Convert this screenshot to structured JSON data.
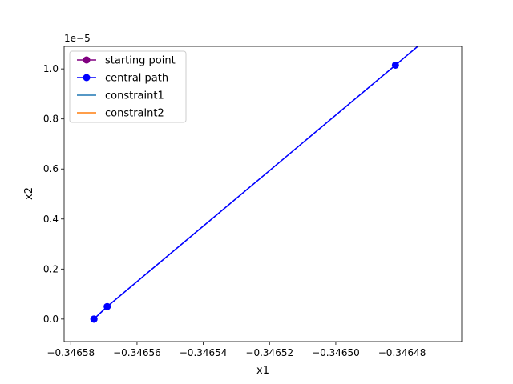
{
  "chart_data": {
    "type": "line",
    "title": "",
    "xlabel": "x1",
    "ylabel": "x2",
    "y_offset_text": "1e−5",
    "xlim": [
      -0.346582,
      -0.346462
    ],
    "ylim": [
      -0.09,
      1.09
    ],
    "x_ticks": [
      -0.34658,
      -0.34656,
      -0.34654,
      -0.34652,
      -0.3465,
      -0.34648
    ],
    "x_tick_labels": [
      "−0.34658",
      "−0.34656",
      "−0.34654",
      "−0.34652",
      "−0.34650",
      "−0.34648"
    ],
    "y_ticks": [
      0.0,
      0.2,
      0.4,
      0.6,
      0.8,
      1.0
    ],
    "y_tick_labels": [
      "0.0",
      "0.2",
      "0.4",
      "0.6",
      "0.8",
      "1.0"
    ],
    "grid": false,
    "legend_placement": "upper-left",
    "series": [
      {
        "name": "starting point",
        "color": "#800080",
        "marker": "circle",
        "x": [
          -0.346573
        ],
        "y": [
          0.0
        ]
      },
      {
        "name": "central path",
        "color": "#0000ff",
        "marker": "circle",
        "x": [
          -0.346573,
          -0.346569,
          -0.346482,
          -0.34646
        ],
        "y": [
          0.0,
          0.05,
          1.015,
          1.26
        ],
        "marker_count": 3
      },
      {
        "name": "constraint1",
        "color": "#1f77b4",
        "marker": "none",
        "x": [],
        "y": []
      },
      {
        "name": "constraint2",
        "color": "#ff7f0e",
        "marker": "none",
        "x": [],
        "y": []
      }
    ]
  }
}
